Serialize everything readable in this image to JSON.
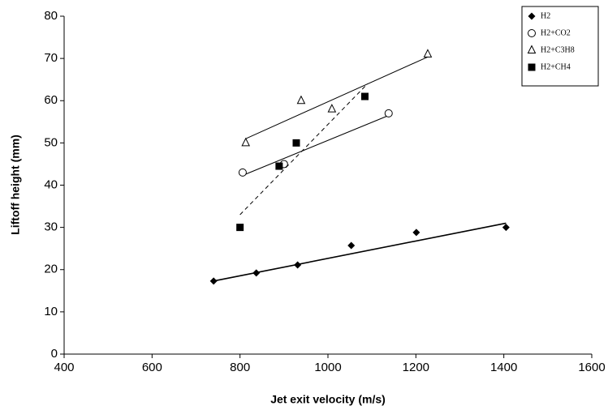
{
  "chart_data": {
    "type": "scatter",
    "xlabel": "Jet exit velocity (m/s)",
    "ylabel": "Liftoff height  (mm)",
    "xlim": [
      400,
      1600
    ],
    "xticks": [
      400,
      600,
      800,
      1000,
      1200,
      1400,
      1600
    ],
    "ylim": [
      0,
      80
    ],
    "yticks": [
      0,
      10,
      20,
      30,
      40,
      50,
      60,
      70,
      80
    ],
    "grid": false,
    "legend": "top-right",
    "series": [
      {
        "name": "H2",
        "color": "#000000",
        "marker": "diamond",
        "x": [
          740,
          837,
          931,
          1053,
          1201,
          1405
        ],
        "values": [
          17.3,
          19.2,
          21.1,
          25.7,
          28.8,
          30.0
        ],
        "trend": {
          "x": [
            740,
            1405
          ],
          "y": [
            17.3,
            31.0
          ],
          "dashed": false
        }
      },
      {
        "name": "H2+CO2",
        "color": "#000000",
        "marker": "circle-open",
        "x": [
          806,
          900,
          1138
        ],
        "values": [
          43,
          45,
          57
        ],
        "trend": {
          "x": [
            806,
            1138
          ],
          "y": [
            42.3,
            56.5
          ],
          "dashed": false
        }
      },
      {
        "name": "H2+C3H8",
        "color": "#000000",
        "marker": "triangle-open",
        "x": [
          813,
          939,
          1009,
          1227
        ],
        "values": [
          50,
          60,
          58,
          71
        ],
        "trend": {
          "x": [
            813,
            1230
          ],
          "y": [
            51,
            70.5
          ],
          "dashed": false
        }
      },
      {
        "name": "H2+CH4",
        "color": "#000000",
        "marker": "square",
        "x": [
          800,
          889,
          928,
          1084
        ],
        "values": [
          30,
          44.5,
          50,
          61
        ],
        "trend": {
          "x": [
            800,
            1090
          ],
          "y": [
            33,
            64
          ],
          "dashed": true
        }
      }
    ]
  }
}
